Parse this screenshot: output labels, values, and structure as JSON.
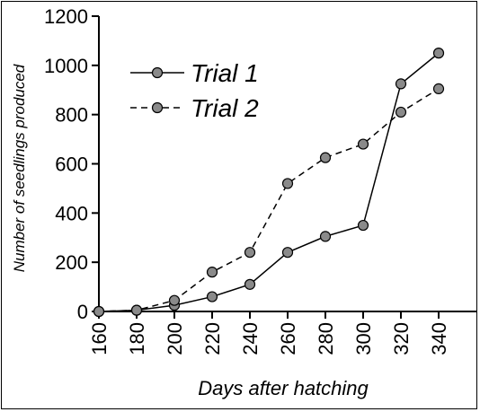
{
  "chart_data": {
    "type": "line",
    "title": "",
    "xlabel": "Days after hatching",
    "ylabel": "Number of seedlings produced",
    "xlim": [
      160,
      360
    ],
    "ylim": [
      0,
      1200
    ],
    "x_ticks": [
      160,
      180,
      200,
      220,
      240,
      260,
      280,
      300,
      320,
      340
    ],
    "y_ticks": [
      0,
      200,
      400,
      600,
      800,
      1000,
      1200
    ],
    "grid": false,
    "legend": {
      "position": "top-left"
    },
    "series": [
      {
        "name": "Trial 1",
        "line_style": "solid",
        "marker_color": "#8a8a8a",
        "x": [
          160,
          180,
          200,
          220,
          240,
          260,
          280,
          300,
          320,
          340
        ],
        "y": [
          0,
          5,
          25,
          60,
          110,
          240,
          305,
          350,
          925,
          1050
        ]
      },
      {
        "name": "Trial 2",
        "line_style": "dashed",
        "marker_color": "#8a8a8a",
        "x": [
          160,
          180,
          200,
          220,
          240,
          260,
          280,
          300,
          320,
          340
        ],
        "y": [
          0,
          5,
          45,
          160,
          240,
          520,
          625,
          680,
          810,
          905
        ]
      }
    ]
  }
}
